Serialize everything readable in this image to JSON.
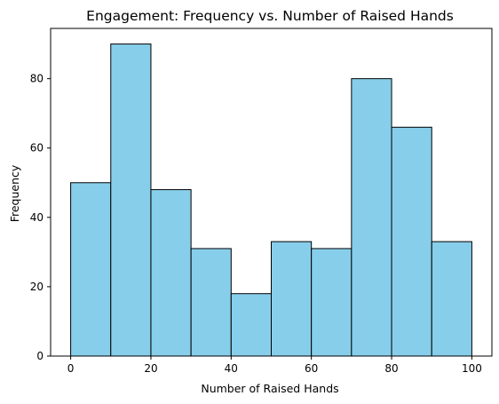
{
  "chart_data": {
    "type": "bar",
    "title": "Engagement: Frequency vs. Number of Raised Hands",
    "xlabel": "Number of Raised Hands",
    "ylabel": "Frequency",
    "bins": [
      {
        "start": 0,
        "end": 10,
        "value": 50
      },
      {
        "start": 10,
        "end": 20,
        "value": 90
      },
      {
        "start": 20,
        "end": 30,
        "value": 48
      },
      {
        "start": 30,
        "end": 40,
        "value": 31
      },
      {
        "start": 40,
        "end": 50,
        "value": 18
      },
      {
        "start": 50,
        "end": 60,
        "value": 33
      },
      {
        "start": 60,
        "end": 70,
        "value": 31
      },
      {
        "start": 70,
        "end": 80,
        "value": 80
      },
      {
        "start": 80,
        "end": 90,
        "value": 66
      },
      {
        "start": 90,
        "end": 100,
        "value": 33
      }
    ],
    "xlim": [
      -5,
      105
    ],
    "ylim": [
      0,
      94.5
    ],
    "xticks": [
      0,
      20,
      40,
      60,
      80,
      100
    ],
    "yticks": [
      0,
      20,
      40,
      60,
      80
    ],
    "bar_color": "#87CEEB",
    "edge_color": "#000000",
    "grid": false,
    "legend": "none"
  }
}
